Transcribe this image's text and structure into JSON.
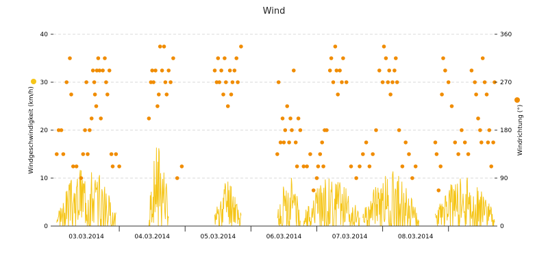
{
  "chart_data": {
    "type": "line",
    "title": "Wind",
    "y_left": {
      "label": "Windgeschwindigkeit (km/h)",
      "ticks": [
        0,
        10,
        20,
        30,
        40
      ],
      "lim": [
        0,
        40
      ]
    },
    "y_right": {
      "label": "Windrichtung (°)",
      "ticks": [
        0,
        90,
        180,
        270,
        360
      ],
      "lim": [
        0,
        360
      ]
    },
    "x": {
      "lim": [
        0,
        6.7
      ],
      "tick_labels": [
        "03.03.2014",
        "04.03.2014",
        "05.03.2014",
        "06.03.2014",
        "07.03.2014",
        "08.03.2014"
      ]
    },
    "colors": {
      "speed": "#f5c518",
      "direction": "#f08c00",
      "grid": "#d8d8d8"
    },
    "legend": {
      "speed_marker": "yellow-dot-left",
      "direction_marker": "orange-dot-right"
    },
    "speed_bursts": [
      {
        "start": 0.05,
        "end": 0.95,
        "peak": 13,
        "seed": 3
      },
      {
        "start": 1.45,
        "end": 1.75,
        "peak": 17.5,
        "seed": 7
      },
      {
        "start": 2.45,
        "end": 2.85,
        "peak": 10.5,
        "seed": 11
      },
      {
        "start": 3.4,
        "end": 3.75,
        "peak": 11.5,
        "seed": 13
      },
      {
        "start": 3.8,
        "end": 4.65,
        "peak": 10.5,
        "seed": 17
      },
      {
        "start": 4.7,
        "end": 5.55,
        "peak": 11.5,
        "seed": 19
      },
      {
        "start": 5.8,
        "end": 6.7,
        "peak": 11,
        "seed": 23
      }
    ],
    "direction_points": [
      [
        0.05,
        135
      ],
      [
        0.08,
        180
      ],
      [
        0.12,
        180
      ],
      [
        0.15,
        135
      ],
      [
        0.2,
        270
      ],
      [
        0.25,
        315
      ],
      [
        0.27,
        247
      ],
      [
        0.3,
        112
      ],
      [
        0.35,
        112
      ],
      [
        0.42,
        90
      ],
      [
        0.45,
        135
      ],
      [
        0.48,
        180
      ],
      [
        0.5,
        270
      ],
      [
        0.52,
        135
      ],
      [
        0.55,
        180
      ],
      [
        0.58,
        202
      ],
      [
        0.6,
        292
      ],
      [
        0.62,
        270
      ],
      [
        0.63,
        247
      ],
      [
        0.65,
        225
      ],
      [
        0.66,
        292
      ],
      [
        0.68,
        315
      ],
      [
        0.7,
        292
      ],
      [
        0.72,
        202
      ],
      [
        0.75,
        292
      ],
      [
        0.78,
        315
      ],
      [
        0.8,
        270
      ],
      [
        0.82,
        247
      ],
      [
        0.85,
        292
      ],
      [
        0.88,
        135
      ],
      [
        0.9,
        112
      ],
      [
        0.95,
        135
      ],
      [
        1.0,
        112
      ],
      [
        1.45,
        202
      ],
      [
        1.48,
        270
      ],
      [
        1.5,
        292
      ],
      [
        1.52,
        270
      ],
      [
        1.55,
        292
      ],
      [
        1.58,
        225
      ],
      [
        1.6,
        247
      ],
      [
        1.62,
        337
      ],
      [
        1.65,
        292
      ],
      [
        1.68,
        337
      ],
      [
        1.7,
        270
      ],
      [
        1.72,
        247
      ],
      [
        1.75,
        292
      ],
      [
        1.78,
        270
      ],
      [
        1.82,
        315
      ],
      [
        1.88,
        90
      ],
      [
        1.95,
        112
      ],
      [
        2.45,
        292
      ],
      [
        2.48,
        270
      ],
      [
        2.5,
        315
      ],
      [
        2.52,
        270
      ],
      [
        2.55,
        292
      ],
      [
        2.58,
        247
      ],
      [
        2.6,
        315
      ],
      [
        2.62,
        270
      ],
      [
        2.65,
        225
      ],
      [
        2.68,
        292
      ],
      [
        2.7,
        247
      ],
      [
        2.72,
        270
      ],
      [
        2.75,
        292
      ],
      [
        2.78,
        315
      ],
      [
        2.8,
        270
      ],
      [
        2.85,
        337
      ],
      [
        3.4,
        135
      ],
      [
        3.42,
        270
      ],
      [
        3.45,
        157
      ],
      [
        3.48,
        202
      ],
      [
        3.5,
        157
      ],
      [
        3.52,
        180
      ],
      [
        3.55,
        225
      ],
      [
        3.58,
        157
      ],
      [
        3.6,
        202
      ],
      [
        3.62,
        180
      ],
      [
        3.65,
        292
      ],
      [
        3.68,
        157
      ],
      [
        3.7,
        112
      ],
      [
        3.72,
        202
      ],
      [
        3.75,
        180
      ],
      [
        3.8,
        112
      ],
      [
        3.85,
        112
      ],
      [
        3.9,
        135
      ],
      [
        3.95,
        67
      ],
      [
        4.0,
        90
      ],
      [
        4.02,
        112
      ],
      [
        4.05,
        135
      ],
      [
        4.08,
        157
      ],
      [
        4.1,
        112
      ],
      [
        4.12,
        180
      ],
      [
        4.15,
        180
      ],
      [
        4.2,
        292
      ],
      [
        4.22,
        315
      ],
      [
        4.25,
        270
      ],
      [
        4.28,
        337
      ],
      [
        4.3,
        292
      ],
      [
        4.32,
        247
      ],
      [
        4.35,
        292
      ],
      [
        4.38,
        270
      ],
      [
        4.4,
        315
      ],
      [
        4.45,
        270
      ],
      [
        4.52,
        112
      ],
      [
        4.6,
        90
      ],
      [
        4.65,
        112
      ],
      [
        4.7,
        135
      ],
      [
        4.75,
        157
      ],
      [
        4.8,
        112
      ],
      [
        4.85,
        135
      ],
      [
        4.9,
        180
      ],
      [
        4.95,
        292
      ],
      [
        5.0,
        270
      ],
      [
        5.02,
        337
      ],
      [
        5.05,
        315
      ],
      [
        5.08,
        270
      ],
      [
        5.1,
        292
      ],
      [
        5.12,
        247
      ],
      [
        5.15,
        270
      ],
      [
        5.18,
        292
      ],
      [
        5.2,
        315
      ],
      [
        5.22,
        270
      ],
      [
        5.25,
        180
      ],
      [
        5.3,
        112
      ],
      [
        5.35,
        157
      ],
      [
        5.4,
        135
      ],
      [
        5.45,
        90
      ],
      [
        5.5,
        112
      ],
      [
        5.8,
        157
      ],
      [
        5.82,
        135
      ],
      [
        5.85,
        67
      ],
      [
        5.88,
        112
      ],
      [
        5.9,
        247
      ],
      [
        5.92,
        315
      ],
      [
        5.95,
        292
      ],
      [
        6.0,
        270
      ],
      [
        6.05,
        225
      ],
      [
        6.1,
        157
      ],
      [
        6.15,
        135
      ],
      [
        6.2,
        180
      ],
      [
        6.25,
        157
      ],
      [
        6.3,
        135
      ],
      [
        6.35,
        292
      ],
      [
        6.4,
        270
      ],
      [
        6.42,
        247
      ],
      [
        6.45,
        202
      ],
      [
        6.48,
        180
      ],
      [
        6.5,
        157
      ],
      [
        6.52,
        315
      ],
      [
        6.55,
        270
      ],
      [
        6.58,
        247
      ],
      [
        6.6,
        157
      ],
      [
        6.62,
        180
      ],
      [
        6.65,
        112
      ],
      [
        6.68,
        157
      ],
      [
        6.7,
        270
      ]
    ]
  }
}
